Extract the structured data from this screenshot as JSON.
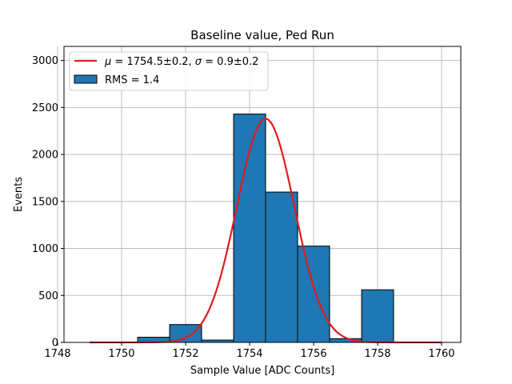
{
  "chart_data": {
    "type": "bar",
    "title": "Baseline value, Ped Run",
    "xlabel": "Sample Value [ADC Counts]",
    "ylabel": "Events",
    "xlim": [
      1748.2,
      1760.6
    ],
    "ylim": [
      0,
      3150
    ],
    "xticks": [
      1748,
      1750,
      1752,
      1754,
      1756,
      1758,
      1760
    ],
    "yticks": [
      0,
      500,
      1000,
      1500,
      2000,
      2500,
      3000
    ],
    "grid": true,
    "legend_position": "top-left",
    "histogram": {
      "name": "RMS = 1.4",
      "color": "#1f77b4",
      "edge_color": "#000000",
      "bins": [
        {
          "x0": 1748.5,
          "x1": 1749.5,
          "count": 0
        },
        {
          "x0": 1749.5,
          "x1": 1750.5,
          "count": 0
        },
        {
          "x0": 1750.5,
          "x1": 1751.5,
          "count": 55
        },
        {
          "x0": 1751.5,
          "x1": 1752.5,
          "count": 190
        },
        {
          "x0": 1752.5,
          "x1": 1753.5,
          "count": 25
        },
        {
          "x0": 1753.5,
          "x1": 1754.5,
          "count": 2430
        },
        {
          "x0": 1754.5,
          "x1": 1755.5,
          "count": 1600
        },
        {
          "x0": 1755.5,
          "x1": 1756.5,
          "count": 1025
        },
        {
          "x0": 1756.5,
          "x1": 1757.5,
          "count": 40
        },
        {
          "x0": 1757.5,
          "x1": 1758.5,
          "count": 560
        },
        {
          "x0": 1758.5,
          "x1": 1759.5,
          "count": 0
        }
      ]
    },
    "fit": {
      "name": "μ = 1754.5±0.2, σ = 0.9±0.2",
      "name_parts": {
        "mu_symbol": "μ",
        "mu_text": " = 1754.5±0.2, ",
        "sigma_symbol": "σ",
        "sigma_text": " = 0.9±0.2"
      },
      "type": "gaussian",
      "mu": 1754.5,
      "sigma": 0.9,
      "amplitude": 2380,
      "x_range": [
        1749,
        1760
      ],
      "color": "#e31a1c"
    }
  }
}
